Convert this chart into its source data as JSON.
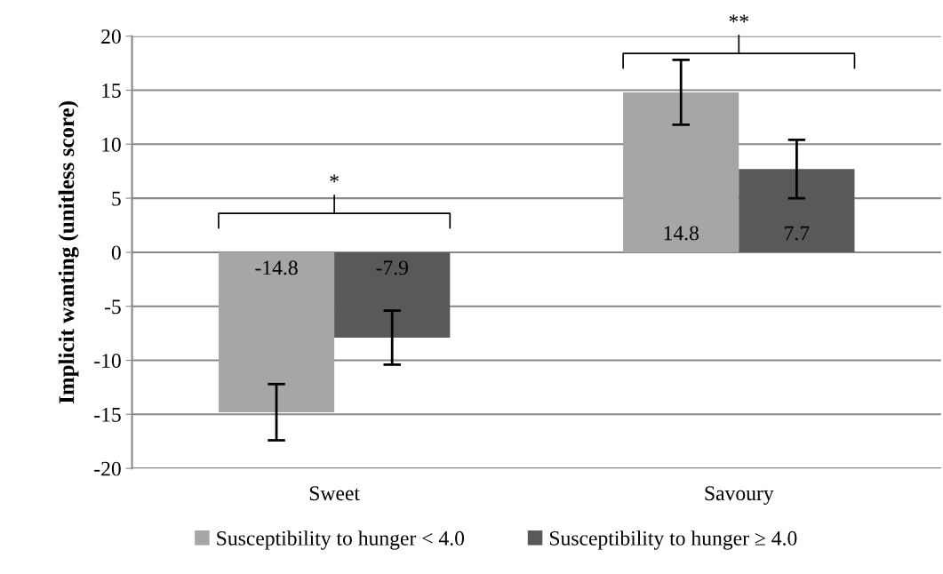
{
  "chart_data": {
    "type": "bar",
    "ylabel": "Implicit wanting (unitless score)",
    "categories": [
      "Sweet",
      "Savoury"
    ],
    "series": [
      {
        "name": "Susceptibility to hunger < 4.0",
        "color": "#a6a6a6",
        "values": [
          -14.8,
          14.8
        ],
        "errors": [
          2.6,
          3.0
        ]
      },
      {
        "name": "Susceptibility to hunger ≥ 4.0",
        "color": "#595959",
        "values": [
          -7.9,
          7.7
        ],
        "errors": [
          2.5,
          2.7
        ]
      }
    ],
    "ylim": [
      -20,
      20
    ],
    "yticks": [
      -20,
      -15,
      -10,
      -5,
      0,
      5,
      10,
      15,
      20
    ],
    "grid": "y",
    "legend": "bottom",
    "data_labels": true,
    "annotations": [
      "*",
      "**"
    ]
  }
}
